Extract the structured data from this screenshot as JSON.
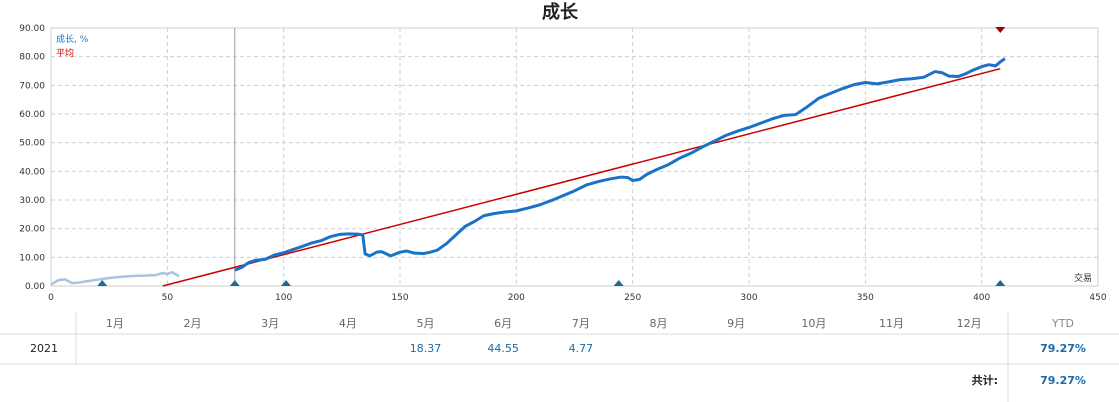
{
  "chart_data": {
    "type": "line",
    "title": "成长",
    "legend": [
      {
        "label": "成长, %",
        "color": "#1a73c8"
      },
      {
        "label": "平均",
        "color": "#cc0000"
      }
    ],
    "xlabel": "交易",
    "xlim": [
      0,
      450
    ],
    "ylim": [
      0,
      90
    ],
    "x_ticks": [
      "0",
      "50",
      "100",
      "150",
      "200",
      "250",
      "300",
      "350",
      "400",
      "450"
    ],
    "y_ticks": [
      "0.00",
      "10.00",
      "20.00",
      "30.00",
      "40.00",
      "50.00",
      "60.00",
      "70.00",
      "80.00",
      "90.00"
    ],
    "grid": true,
    "pre_period_series": {
      "color": "#a8c4de",
      "x": [
        0,
        3,
        6,
        9,
        12,
        15,
        20,
        25,
        30,
        35,
        40,
        45,
        48,
        50,
        52,
        55
      ],
      "y": [
        0.5,
        2,
        2.3,
        1,
        1.2,
        1.6,
        2.2,
        2.8,
        3.2,
        3.5,
        3.6,
        3.8,
        4.5,
        4.2,
        4.8,
        3.4
      ]
    },
    "series": [
      {
        "color": "#1a73c8",
        "x": [
          79,
          82,
          85,
          88,
          92,
          96,
          100,
          104,
          108,
          112,
          116,
          120,
          124,
          128,
          132,
          134,
          135,
          137,
          140,
          142,
          146,
          150,
          153,
          156,
          160,
          163,
          166,
          170,
          174,
          178,
          182,
          186,
          190,
          195,
          200,
          205,
          210,
          215,
          220,
          225,
          230,
          235,
          240,
          245,
          248,
          250,
          253,
          256,
          260,
          265,
          270,
          275,
          280,
          285,
          290,
          295,
          300,
          305,
          310,
          315,
          320,
          325,
          330,
          335,
          340,
          345,
          350,
          355,
          360,
          365,
          370,
          375,
          380,
          383,
          386,
          390,
          393,
          396,
          400,
          403,
          406,
          408,
          410
        ],
        "y": [
          5.5,
          6.5,
          8.2,
          9,
          9.3,
          10.8,
          11.6,
          12.7,
          13.8,
          15,
          15.8,
          17.2,
          18,
          18.2,
          18.1,
          17.8,
          11.2,
          10.5,
          11.8,
          12,
          10.5,
          11.8,
          12.2,
          11.5,
          11.3,
          11.8,
          12.5,
          14.8,
          17.8,
          20.8,
          22.5,
          24.5,
          25.2,
          25.8,
          26.2,
          27.2,
          28.3,
          29.8,
          31.5,
          33.2,
          35.2,
          36.4,
          37.3,
          38,
          37.8,
          36.8,
          37.2,
          38.9,
          40.5,
          42.2,
          44.5,
          46.3,
          48.5,
          50.5,
          52.5,
          54,
          55.3,
          56.8,
          58.3,
          59.5,
          59.8,
          62.5,
          65.5,
          67.2,
          68.8,
          70.2,
          71,
          70.5,
          71.2,
          72,
          72.3,
          72.8,
          74.8,
          74.4,
          73.2,
          73.1,
          74,
          75.2,
          76.5,
          77.2,
          76.8,
          78.2,
          79.3
        ]
      }
    ],
    "average_line": {
      "color": "#cc0000",
      "x": [
        48,
        408
      ],
      "y": [
        0,
        75.8
      ]
    },
    "markers": {
      "bottom_x": [
        22,
        79,
        101,
        244,
        408
      ],
      "top_x": [
        408
      ]
    }
  },
  "months": [
    "1月",
    "2月",
    "3月",
    "4月",
    "5月",
    "6月",
    "7月",
    "8月",
    "9月",
    "10月",
    "11月",
    "12月"
  ],
  "ytd_header": "YTD",
  "year_row": {
    "label": "2021",
    "values": [
      "",
      "",
      "",
      "",
      "18.37",
      "44.55",
      "4.77",
      "",
      "",
      "",
      "",
      ""
    ],
    "ytd": "79.27%"
  },
  "total": {
    "label": "共计:",
    "value": "79.27%"
  }
}
